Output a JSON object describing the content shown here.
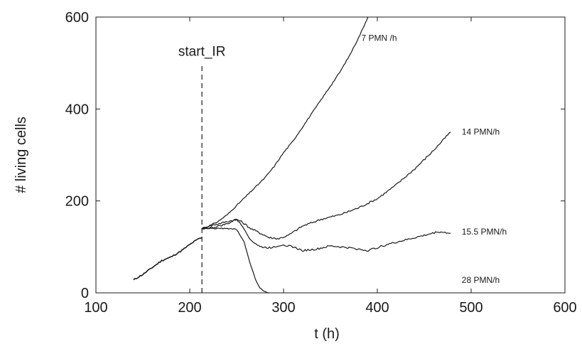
{
  "chart_data": {
    "type": "line",
    "title": "",
    "xlabel": "t  (h)",
    "ylabel": "# living cells",
    "xlim": [
      100,
      600
    ],
    "ylim": [
      0,
      600
    ],
    "xticks": [
      100,
      200,
      300,
      400,
      500,
      600
    ],
    "yticks": [
      0,
      200,
      400,
      600
    ],
    "grid": false,
    "colors": {
      "line": "#1a1a1a",
      "frame": "#1a1a1a"
    },
    "annotations": [
      {
        "text": "start_IR",
        "x": 213,
        "style": "dashed-vertical",
        "y_from": 0,
        "y_to": 500
      }
    ],
    "baseline": [
      [
        140,
        28
      ],
      [
        150,
        40
      ],
      [
        160,
        55
      ],
      [
        170,
        70
      ],
      [
        180,
        78
      ],
      [
        190,
        90
      ],
      [
        200,
        105
      ],
      [
        205,
        112
      ],
      [
        210,
        118
      ],
      [
        213,
        120
      ]
    ],
    "series": [
      {
        "name": "7  PMN  /h",
        "label_at": [
          383,
          554
        ],
        "x": [
          213,
          220,
          230,
          240,
          250,
          260,
          270,
          280,
          290,
          300,
          310,
          320,
          330,
          340,
          350,
          360,
          370,
          380,
          390
        ],
        "y": [
          140,
          145,
          155,
          170,
          190,
          210,
          230,
          250,
          275,
          305,
          330,
          360,
          390,
          420,
          450,
          480,
          515,
          555,
          600
        ]
      },
      {
        "name": "14  PMN/h",
        "label_at": [
          490,
          350
        ],
        "x": [
          213,
          220,
          230,
          240,
          250,
          255,
          265,
          275,
          285,
          295,
          305,
          320,
          340,
          360,
          380,
          400,
          420,
          440,
          460,
          478
        ],
        "y": [
          140,
          145,
          150,
          155,
          160,
          155,
          140,
          130,
          120,
          118,
          125,
          145,
          160,
          170,
          185,
          205,
          235,
          270,
          310,
          350
        ]
      },
      {
        "name": "15.5  PMN/h",
        "label_at": [
          490,
          133
        ],
        "x": [
          213,
          225,
          240,
          250,
          258,
          265,
          275,
          285,
          300,
          310,
          320,
          335,
          350,
          370,
          390,
          410,
          430,
          450,
          465,
          478
        ],
        "y": [
          140,
          142,
          150,
          160,
          140,
          115,
          100,
          98,
          105,
          100,
          92,
          95,
          102,
          98,
          92,
          105,
          115,
          125,
          133,
          130
        ]
      },
      {
        "name": "28  PMN/h",
        "label_at": [
          490,
          28
        ],
        "x": [
          213,
          225,
          240,
          250,
          258,
          265,
          270,
          275,
          280,
          285
        ],
        "y": [
          140,
          140,
          140,
          138,
          110,
          60,
          30,
          10,
          2,
          0
        ]
      }
    ]
  }
}
